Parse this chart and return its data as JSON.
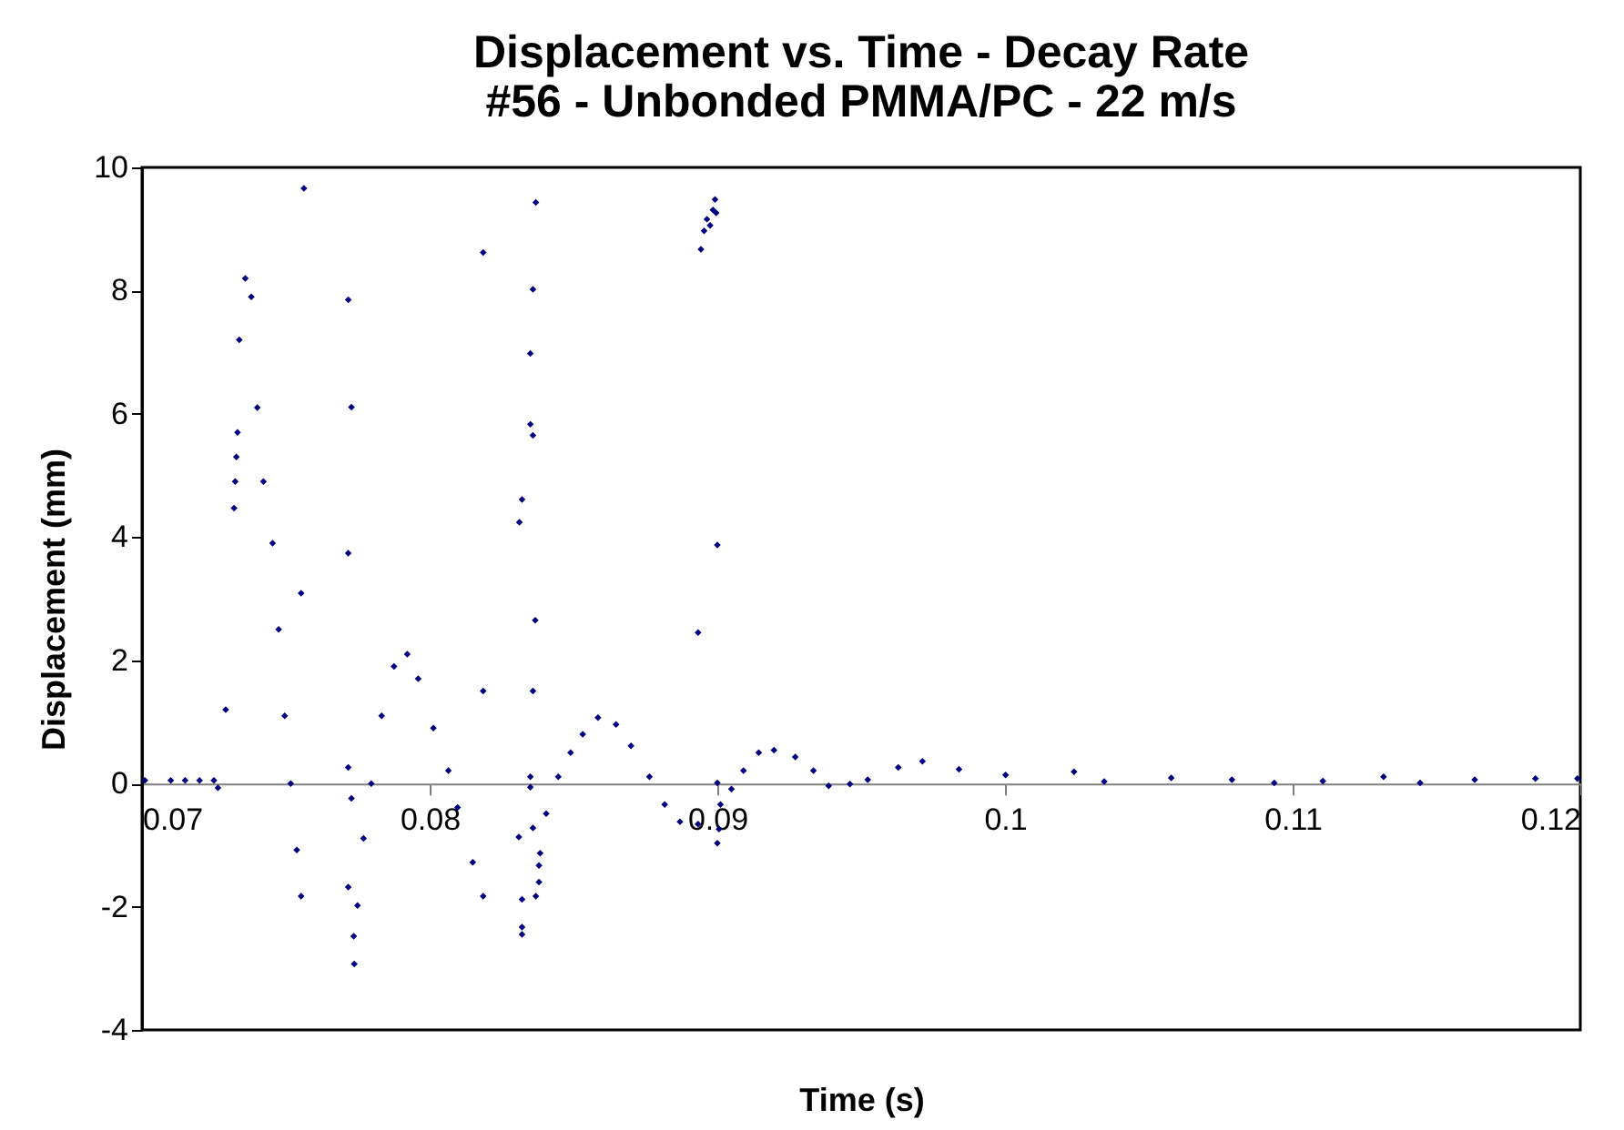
{
  "chart_data": {
    "type": "scatter",
    "title": "Displacement vs. Time - Decay Rate",
    "subtitle": "#56 - Unbonded PMMA/PC - 22 m/s",
    "xlabel": "Time (s)",
    "ylabel": "Displacement (mm)",
    "xlim": [
      0.07,
      0.12
    ],
    "ylim": [
      -4,
      10
    ],
    "xticks": [
      0.07,
      0.08,
      0.09,
      0.1,
      0.11,
      0.12
    ],
    "yticks": [
      -4,
      -2,
      0,
      2,
      4,
      6,
      8,
      10
    ],
    "marker": "diamond",
    "grid": false,
    "series": [
      {
        "color": "#000080",
        "x": [
          0.0701,
          0.071,
          0.0715,
          0.072,
          0.0725,
          0.07264,
          0.07291,
          0.0732,
          0.07324,
          0.07328,
          0.07332,
          0.07338,
          0.07359,
          0.0738,
          0.07401,
          0.07422,
          0.07454,
          0.07475,
          0.07496,
          0.07517,
          0.07538,
          0.07553,
          0.07563,
          0.07553,
          0.07717,
          0.07728,
          0.07717,
          0.07717,
          0.07728,
          0.07717,
          0.07738,
          0.07736,
          0.07749,
          0.0777,
          0.07797,
          0.07833,
          0.07876,
          0.07922,
          0.0796,
          0.08013,
          0.08065,
          0.08097,
          0.0815,
          0.08186,
          0.08186,
          0.08186,
          0.08369,
          0.08359,
          0.0835,
          0.0835,
          0.08359,
          0.08321,
          0.08312,
          0.08367,
          0.08359,
          0.0835,
          0.0835,
          0.08359,
          0.0831,
          0.08321,
          0.08321,
          0.08321,
          0.08369,
          0.0838,
          0.0838,
          0.08384,
          0.08405,
          0.08447,
          0.0849,
          0.08532,
          0.08585,
          0.08648,
          0.087,
          0.08764,
          0.08817,
          0.0887,
          0.08933,
          0.08943,
          0.08954,
          0.08964,
          0.08985,
          0.08992,
          0.08975,
          0.08996,
          0.09,
          0.08933,
          0.09,
          0.09006,
          0.09,
          0.09011,
          0.09049,
          0.09091,
          0.09144,
          0.09197,
          0.09271,
          0.09334,
          0.09387,
          0.09461,
          0.09523,
          0.09629,
          0.09713,
          0.0984,
          0.10002,
          0.1024,
          0.10345,
          0.10578,
          0.10789,
          0.10936,
          0.11105,
          0.11316,
          0.11443,
          0.11633,
          0.11844,
          0.1199
        ],
        "values": [
          0.05,
          0.05,
          0.05,
          0.05,
          0.05,
          -0.07,
          1.2,
          4.47,
          4.9,
          5.3,
          5.7,
          7.2,
          8.2,
          7.9,
          6.1,
          4.9,
          3.9,
          2.5,
          1.1,
          0,
          -1.08,
          -1.83,
          9.66,
          3.09,
          7.85,
          6.11,
          3.74,
          0.26,
          -0.24,
          -1.68,
          -2.93,
          -2.48,
          -1.98,
          -0.89,
          0,
          1.1,
          1.9,
          2.1,
          1.7,
          0.9,
          0.21,
          -0.39,
          -1.28,
          -1.83,
          8.62,
          1.5,
          9.43,
          8.02,
          6.98,
          5.83,
          5.65,
          4.61,
          4.24,
          2.65,
          1.5,
          0.11,
          -0.06,
          -0.72,
          -0.87,
          -1.88,
          -2.33,
          -2.45,
          -1.83,
          -1.6,
          -1.33,
          -1.13,
          -0.49,
          0.11,
          0.5,
          0.8,
          1.07,
          0.96,
          0.61,
          0.11,
          -0.34,
          -0.62,
          -0.66,
          8.67,
          8.97,
          9.16,
          9.31,
          9.48,
          9.06,
          9.26,
          3.87,
          2.45,
          0.01,
          -0.74,
          -0.97,
          -0.34,
          -0.09,
          0.21,
          0.5,
          0.54,
          0.43,
          0.21,
          -0.04,
          -0.01,
          0.06,
          0.26,
          0.36,
          0.23,
          0.14,
          0.19,
          0.03,
          0.09,
          0.06,
          0.01,
          0.04,
          0.11,
          0.01,
          0.06,
          0.08,
          0.08
        ]
      }
    ]
  }
}
